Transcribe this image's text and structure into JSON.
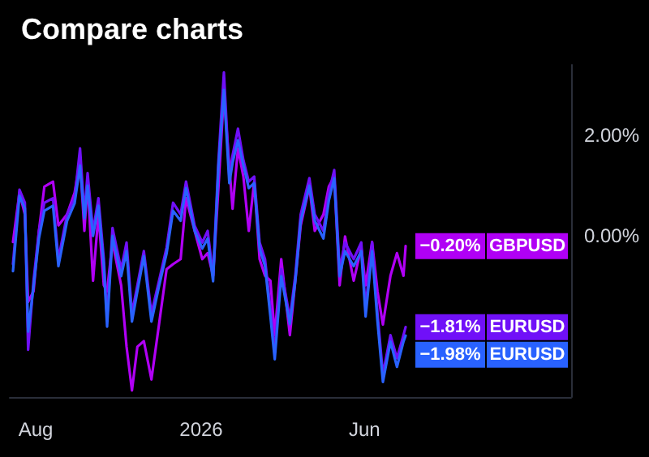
{
  "chart_data": {
    "type": "line",
    "title": "Compare charts",
    "x": [
      "2025-07-11",
      "2025-07-17",
      "2025-07-22",
      "2025-07-25",
      "2025-07-30",
      "2025-08-04",
      "2025-08-09",
      "2025-08-17",
      "2025-08-22",
      "2025-08-30",
      "2025-09-06",
      "2025-09-11",
      "2025-09-15",
      "2025-09-18",
      "2025-09-23",
      "2025-09-28",
      "2025-10-03",
      "2025-10-06",
      "2025-10-11",
      "2025-10-19",
      "2025-10-24",
      "2025-10-29",
      "2025-11-03",
      "2025-11-09",
      "2025-11-16",
      "2025-11-23",
      "2025-11-30",
      "2025-12-06",
      "2025-12-13",
      "2025-12-18",
      "2025-12-26",
      "2026-01-02",
      "2026-01-07",
      "2026-01-12",
      "2026-01-17",
      "2026-01-22",
      "2026-01-27",
      "2026-01-30",
      "2026-02-04",
      "2026-02-09",
      "2026-02-14",
      "2026-02-19",
      "2026-02-24",
      "2026-03-01",
      "2026-03-06",
      "2026-03-10",
      "2026-03-16",
      "2026-03-24",
      "2026-03-29",
      "2026-04-03",
      "2026-04-11",
      "2026-04-16",
      "2026-04-24",
      "2026-04-29",
      "2026-05-04",
      "2026-05-09",
      "2026-05-14",
      "2026-05-22",
      "2026-05-29",
      "2026-06-02",
      "2026-06-08",
      "2026-06-13",
      "2026-06-18",
      "2026-06-25",
      "2026-07-01",
      "2026-07-07",
      "2026-07-09"
    ],
    "series": [
      {
        "name": "GBPUSD",
        "color": "#b000f5",
        "values": [
          -0.12,
          0.86,
          0.43,
          -1.31,
          -1.1,
          0.1,
          0.98,
          1.08,
          0.21,
          0.43,
          0.86,
          1.51,
          0.1,
          1.08,
          -0.89,
          0.43,
          -0.98,
          -1.1,
          -0.12,
          -0.98,
          -2.2,
          -3.07,
          -2.2,
          -2.09,
          -2.85,
          -1.76,
          -0.66,
          -0.56,
          -0.46,
          0.75,
          0.1,
          -0.46,
          -0.34,
          -0.79,
          0.98,
          2.83,
          1.4,
          0.54,
          1.74,
          1.18,
          0.1,
          1.08,
          -0.46,
          -0.79,
          -0.89,
          -1.97,
          -0.46,
          -1.97,
          -0.89,
          0.21,
          0.98,
          0.1,
          0.43,
          0.98,
          1.18,
          -0.98,
          -0.01,
          -0.89,
          -0.23,
          -0.98,
          -0.12,
          -1.1,
          -1.76,
          -0.79,
          -0.34,
          -0.79,
          -0.2
        ],
        "value_labels": [
          null,
          null,
          null,
          null,
          null,
          null,
          null,
          null,
          null,
          null,
          null,
          null,
          null,
          null,
          null,
          null,
          null,
          null,
          null,
          null,
          null,
          null,
          null,
          null,
          null,
          null,
          null,
          null,
          null,
          null,
          null,
          null,
          null,
          null,
          null,
          null,
          null,
          null,
          null,
          null,
          null,
          null,
          null,
          null,
          null,
          null,
          null,
          null,
          null,
          null,
          null,
          null,
          null,
          null,
          null,
          null,
          null,
          null,
          null,
          null,
          null,
          null,
          null,
          null,
          null,
          null,
          "−0.20%"
        ]
      },
      {
        "name": "EURUSD",
        "color": "#7010f8",
        "values": [
          -0.56,
          0.92,
          0.66,
          -2.26,
          -0.89,
          0.1,
          0.66,
          0.75,
          -0.46,
          0.43,
          0.75,
          1.74,
          0.43,
          1.25,
          0.1,
          0.75,
          -0.46,
          -1.64,
          0.16,
          -0.66,
          -0.13,
          -1.54,
          -0.98,
          -0.3,
          -1.54,
          -0.89,
          -0.23,
          0.66,
          0.43,
          1.08,
          0.2,
          -0.13,
          0.1,
          -0.79,
          1.51,
          3.25,
          1.18,
          1.6,
          2.13,
          1.51,
          1.08,
          1.18,
          -0.13,
          -0.46,
          -1.44,
          -2.3,
          -0.66,
          -1.64,
          -0.79,
          0.43,
          1.15,
          0.43,
          0.1,
          0.85,
          1.31,
          -0.66,
          -0.13,
          -0.46,
          -0.13,
          -1.44,
          -0.13,
          -1.54,
          -2.75,
          -1.97,
          -2.43,
          -1.97,
          -1.81
        ],
        "value_labels": [
          null,
          null,
          null,
          null,
          null,
          null,
          null,
          null,
          null,
          null,
          null,
          null,
          null,
          null,
          null,
          null,
          null,
          null,
          null,
          null,
          null,
          null,
          null,
          null,
          null,
          null,
          null,
          null,
          null,
          null,
          null,
          null,
          null,
          null,
          null,
          null,
          null,
          null,
          null,
          null,
          null,
          null,
          null,
          null,
          null,
          null,
          null,
          null,
          null,
          null,
          null,
          null,
          null,
          null,
          null,
          null,
          null,
          null,
          null,
          null,
          null,
          null,
          null,
          null,
          null,
          null,
          "−1.81%"
        ]
      },
      {
        "name": "EURUSD",
        "color": "#2962ff",
        "values": [
          -0.7,
          0.8,
          0.55,
          -1.9,
          -1.0,
          -0.05,
          0.5,
          0.6,
          -0.6,
          0.3,
          0.65,
          1.4,
          0.35,
          1.0,
          0.0,
          0.6,
          -0.6,
          -1.8,
          0.0,
          -0.8,
          -0.3,
          -1.7,
          -1.1,
          -0.4,
          -1.7,
          -1.0,
          -0.35,
          0.5,
          0.3,
          0.95,
          0.1,
          -0.25,
          -0.05,
          -0.9,
          1.4,
          2.9,
          1.05,
          1.45,
          1.9,
          1.4,
          0.95,
          1.05,
          -0.25,
          -0.6,
          -1.6,
          -2.45,
          -0.8,
          -1.75,
          -0.9,
          0.3,
          1.0,
          0.3,
          -0.05,
          0.7,
          1.15,
          -0.8,
          -0.3,
          -0.6,
          -0.3,
          -1.6,
          -0.3,
          -1.7,
          -2.9,
          -2.1,
          -2.6,
          -2.1,
          -1.98
        ],
        "value_labels": [
          null,
          null,
          null,
          null,
          null,
          null,
          null,
          null,
          null,
          null,
          null,
          null,
          null,
          null,
          null,
          null,
          null,
          null,
          null,
          null,
          null,
          null,
          null,
          null,
          null,
          null,
          null,
          null,
          null,
          null,
          null,
          null,
          null,
          null,
          null,
          null,
          null,
          null,
          null,
          null,
          null,
          null,
          null,
          null,
          null,
          null,
          null,
          null,
          null,
          null,
          null,
          null,
          null,
          null,
          null,
          null,
          null,
          null,
          null,
          null,
          null,
          null,
          null,
          null,
          null,
          null,
          "−1.98%"
        ]
      }
    ],
    "legend": "right",
    "xlim": [
      "2025-07-08",
      "2026-12-09"
    ],
    "ylim": [
      -3.2,
      3.4
    ],
    "xticks": [
      {
        "value": "2025-08-01",
        "label": "Aug"
      },
      {
        "value": "2026-01-01",
        "label": "2026"
      },
      {
        "value": "2026-06-01",
        "label": "Jun"
      }
    ],
    "yticks": [
      {
        "value": 0,
        "label": "0.00%"
      },
      {
        "value": 2,
        "label": "2.00%"
      }
    ],
    "grid": false,
    "line_style": "solid"
  }
}
